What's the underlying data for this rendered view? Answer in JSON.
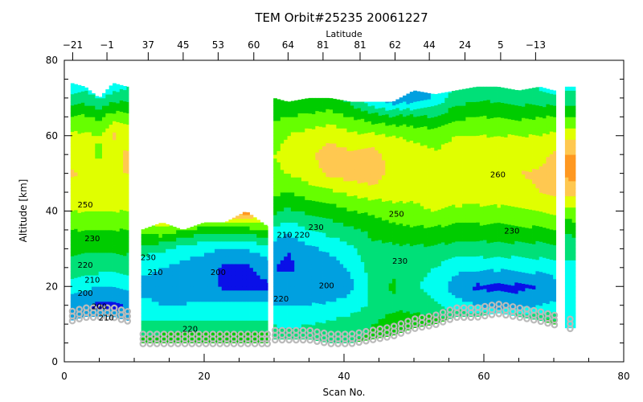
{
  "chart_data": {
    "type": "heatmap",
    "title": "TEM Orbit#25235 20061227",
    "xlabel": "Scan No.",
    "ylabel": "Altitude [km]",
    "top_axis_label": "Latitude",
    "xlim": [
      0,
      80
    ],
    "ylim": [
      0,
      80
    ],
    "x_ticks": [
      0,
      20,
      40,
      60,
      80
    ],
    "y_ticks": [
      0,
      20,
      40,
      60,
      80
    ],
    "top_ticks": [
      {
        "scan": 1.2,
        "label": "-21"
      },
      {
        "scan": 6.1,
        "label": "-1"
      },
      {
        "scan": 12,
        "label": "37"
      },
      {
        "scan": 17,
        "label": "45"
      },
      {
        "scan": 22,
        "label": "53"
      },
      {
        "scan": 27.1,
        "label": "60"
      },
      {
        "scan": 32,
        "label": "64"
      },
      {
        "scan": 37,
        "label": "81"
      },
      {
        "scan": 42.3,
        "label": "81"
      },
      {
        "scan": 47.3,
        "label": "62"
      },
      {
        "scan": 52.2,
        "label": "44"
      },
      {
        "scan": 57.3,
        "label": "24"
      },
      {
        "scan": 62.4,
        "label": "5"
      },
      {
        "scan": 67.4,
        "label": "-13"
      }
    ],
    "levels": [
      190,
      200,
      210,
      220,
      230,
      240,
      250,
      260,
      270,
      280
    ],
    "colors": [
      "#9a00d0",
      "#0a10e8",
      "#00a0e0",
      "#00fff0",
      "#00e078",
      "#00cc00",
      "#66ff00",
      "#e0ff00",
      "#ffc850",
      "#ff9820",
      "#ff6a00"
    ],
    "altitudes": [
      5,
      10,
      15,
      20,
      25,
      30,
      35,
      40,
      45,
      50,
      55,
      60,
      65,
      70,
      75
    ],
    "segments": [
      {
        "scan_range": [
          0.9,
          9.2
        ],
        "scans": [
          1,
          3,
          5,
          7,
          9
        ],
        "bottom": [
          11,
          12,
          12,
          12,
          11
        ],
        "top": [
          74,
          73,
          70,
          74,
          73
        ],
        "temps": [
          [
            210,
            210,
            205,
            215,
            225,
            232,
            240,
            250,
            255,
            262,
            255,
            252,
            240,
            222,
            210
          ],
          [
            210,
            210,
            200,
            212,
            225,
            232,
            240,
            250,
            255,
            258,
            255,
            252,
            242,
            225,
            212
          ],
          [
            210,
            210,
            198,
            210,
            224,
            232,
            240,
            250,
            255,
            256,
            248,
            250,
            238,
            220,
            200
          ],
          [
            210,
            210,
            197,
            210,
            224,
            232,
            240,
            250,
            256,
            260,
            255,
            262,
            245,
            225,
            212
          ],
          [
            210,
            210,
            200,
            212,
            225,
            232,
            240,
            250,
            255,
            260,
            262,
            255,
            245,
            228,
            212
          ]
        ]
      },
      {
        "scan_range": [
          11,
          29.1
        ],
        "scans": [
          11,
          14,
          17,
          20,
          23,
          26,
          29
        ],
        "bottom": [
          5,
          5,
          5,
          5,
          5,
          5,
          5
        ],
        "top": [
          35,
          37,
          35,
          37,
          37,
          40,
          36
        ],
        "temps": [
          [
            235,
            222,
            212,
            208,
            212,
            225,
            245,
            255,
            255,
            255,
            255,
            255,
            255,
            255,
            255
          ],
          [
            238,
            222,
            210,
            207,
            210,
            222,
            248,
            260,
            260,
            260,
            260,
            260,
            260,
            260,
            260
          ],
          [
            238,
            222,
            210,
            206,
            207,
            215,
            240,
            270,
            270,
            270,
            270,
            270,
            270,
            270,
            270
          ],
          [
            238,
            222,
            212,
            205,
            205,
            212,
            235,
            272,
            272,
            272,
            272,
            272,
            272,
            272,
            272
          ],
          [
            240,
            222,
            212,
            198,
            198,
            210,
            232,
            275,
            275,
            275,
            275,
            275,
            275,
            275,
            275
          ],
          [
            240,
            222,
            212,
            196,
            198,
            210,
            235,
            278,
            278,
            278,
            278,
            278,
            278,
            278,
            278
          ],
          [
            238,
            222,
            212,
            198,
            205,
            215,
            240,
            265,
            265,
            265,
            265,
            265,
            265,
            265,
            265
          ]
        ]
      },
      {
        "scan_range": [
          29.9,
          70.3
        ],
        "scans": [
          30,
          32,
          35,
          38,
          41,
          44,
          47,
          50,
          53,
          56,
          59,
          62,
          65,
          68,
          70
        ],
        "bottom": [
          6,
          6,
          6,
          5,
          5,
          6,
          7,
          9,
          10,
          12,
          12,
          13,
          12,
          11,
          10
        ],
        "top": [
          70,
          69,
          70,
          70,
          69,
          69,
          69,
          72,
          71,
          72,
          73,
          73,
          72,
          73,
          72
        ],
        "temps": [
          [
            225,
            220,
            210,
            205,
            200,
            205,
            218,
            232,
            242,
            248,
            250,
            245,
            238,
            232,
            230
          ],
          [
            225,
            218,
            210,
            205,
            198,
            200,
            212,
            228,
            240,
            250,
            254,
            250,
            240,
            232,
            228
          ],
          [
            228,
            220,
            210,
            205,
            203,
            208,
            220,
            232,
            245,
            255,
            258,
            255,
            242,
            232,
            228
          ],
          [
            228,
            222,
            212,
            200,
            205,
            212,
            224,
            235,
            248,
            262,
            265,
            258,
            245,
            232,
            226
          ],
          [
            230,
            225,
            215,
            208,
            212,
            218,
            228,
            240,
            252,
            265,
            262,
            252,
            240,
            225,
            215
          ],
          [
            232,
            230,
            222,
            222,
            224,
            228,
            232,
            242,
            255,
            268,
            265,
            252,
            235,
            210,
            200
          ],
          [
            235,
            235,
            228,
            232,
            228,
            228,
            235,
            248,
            252,
            255,
            255,
            250,
            232,
            200,
            188
          ],
          [
            238,
            238,
            225,
            222,
            225,
            228,
            238,
            248,
            252,
            255,
            255,
            248,
            232,
            205,
            195
          ],
          [
            240,
            238,
            222,
            215,
            220,
            228,
            238,
            250,
            255,
            255,
            252,
            245,
            230,
            212,
            208
          ],
          [
            240,
            238,
            215,
            205,
            213,
            226,
            236,
            248,
            255,
            256,
            254,
            250,
            238,
            225,
            218
          ],
          [
            240,
            238,
            210,
            198,
            212,
            226,
            236,
            248,
            254,
            255,
            256,
            250,
            240,
            228,
            220
          ],
          [
            240,
            238,
            205,
            198,
            212,
            226,
            236,
            248,
            255,
            258,
            254,
            250,
            240,
            228,
            222
          ],
          [
            240,
            238,
            205,
            198,
            212,
            226,
            238,
            248,
            256,
            260,
            254,
            250,
            238,
            225,
            218
          ],
          [
            240,
            236,
            210,
            200,
            214,
            226,
            238,
            250,
            260,
            262,
            256,
            250,
            240,
            225,
            215
          ],
          [
            240,
            235,
            212,
            205,
            215,
            228,
            240,
            252,
            262,
            265,
            262,
            252,
            240,
            222,
            212
          ]
        ]
      },
      {
        "scan_range": [
          71.6,
          73.1
        ],
        "scans": [
          72,
          73
        ],
        "bottom": [
          9,
          9
        ],
        "top": [
          73,
          73
        ],
        "temps": [
          [
            225,
            218,
            215,
            215,
            218,
            222,
            232,
            245,
            262,
            272,
            270,
            258,
            240,
            225,
            212
          ],
          [
            225,
            218,
            215,
            215,
            218,
            222,
            234,
            248,
            265,
            275,
            270,
            258,
            240,
            225,
            212
          ]
        ]
      }
    ],
    "contour_labels": [
      {
        "scan": 3,
        "alt": 41,
        "text": "250"
      },
      {
        "scan": 4,
        "alt": 32,
        "text": "230"
      },
      {
        "scan": 3,
        "alt": 25,
        "text": "220"
      },
      {
        "scan": 4,
        "alt": 21,
        "text": "210"
      },
      {
        "scan": 3,
        "alt": 17.5,
        "text": "200"
      },
      {
        "scan": 5,
        "alt": 14,
        "text": "200"
      },
      {
        "scan": 6,
        "alt": 11,
        "text": "210"
      },
      {
        "scan": 12,
        "alt": 27,
        "text": "230"
      },
      {
        "scan": 13,
        "alt": 23,
        "text": "210"
      },
      {
        "scan": 22,
        "alt": 23,
        "text": "200"
      },
      {
        "scan": 18,
        "alt": 8,
        "text": "220"
      },
      {
        "scan": 31.5,
        "alt": 33,
        "text": "210"
      },
      {
        "scan": 34,
        "alt": 33,
        "text": "220"
      },
      {
        "scan": 47.5,
        "alt": 38.5,
        "text": "250"
      },
      {
        "scan": 64,
        "alt": 34,
        "text": "230"
      },
      {
        "scan": 37.5,
        "alt": 19.5,
        "text": "200"
      },
      {
        "scan": 48,
        "alt": 26,
        "text": "230"
      },
      {
        "scan": 62,
        "alt": 49,
        "text": "260"
      },
      {
        "scan": 31,
        "alt": 16,
        "text": "220"
      },
      {
        "scan": 36,
        "alt": 35,
        "text": "230"
      }
    ]
  }
}
